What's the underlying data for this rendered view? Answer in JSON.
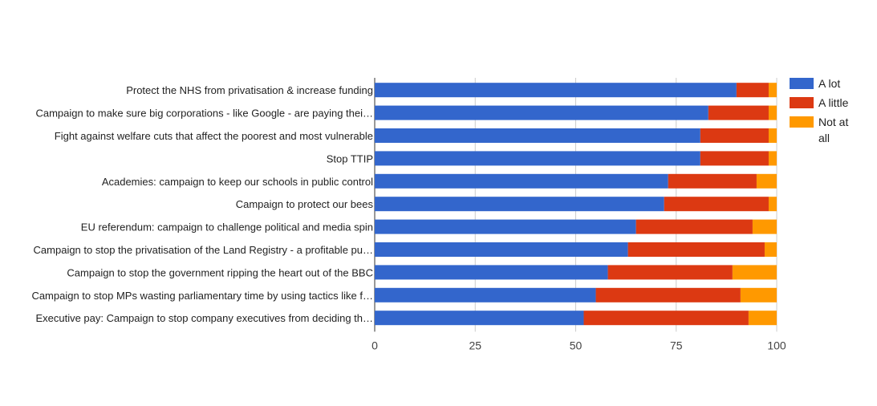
{
  "chart_data": {
    "type": "bar",
    "orientation": "horizontal",
    "stacked": true,
    "categories": [
      "Protect the NHS from privatisation & increase funding",
      "Campaign to make sure big corporations - like Google - are paying thei…",
      "Fight against welfare cuts that affect the poorest and most vulnerable",
      "Stop TTIP",
      "Academies: campaign to keep our schools in public control",
      "Campaign to protect our bees",
      "EU referendum: campaign to challenge political and media spin",
      "Campaign to stop the privatisation of the Land Registry - a profitable pu…",
      "Campaign to stop the government ripping the heart out of the BBC",
      "Campaign to stop MPs wasting parliamentary time by using tactics like f…",
      "Executive pay: Campaign to stop company executives from deciding th…"
    ],
    "series": [
      {
        "name": "A lot",
        "color": "#3366cc",
        "values": [
          90,
          83,
          81,
          81,
          73,
          72,
          65,
          63,
          58,
          55,
          52
        ]
      },
      {
        "name": "A little",
        "color": "#dc3912",
        "values": [
          8,
          15,
          17,
          17,
          22,
          26,
          29,
          34,
          31,
          36,
          41
        ]
      },
      {
        "name": "Not at all",
        "color": "#ff9900",
        "values": [
          2,
          2,
          2,
          2,
          5,
          2,
          6,
          3,
          11,
          9,
          7
        ]
      }
    ],
    "xlim": [
      0,
      100
    ],
    "xticks": [
      "0",
      "25",
      "50",
      "75",
      "100"
    ],
    "grid": true,
    "legend_position": "right",
    "legend_labels": [
      [
        "A lot"
      ],
      [
        "A little"
      ],
      [
        "Not at",
        "all"
      ]
    ]
  }
}
